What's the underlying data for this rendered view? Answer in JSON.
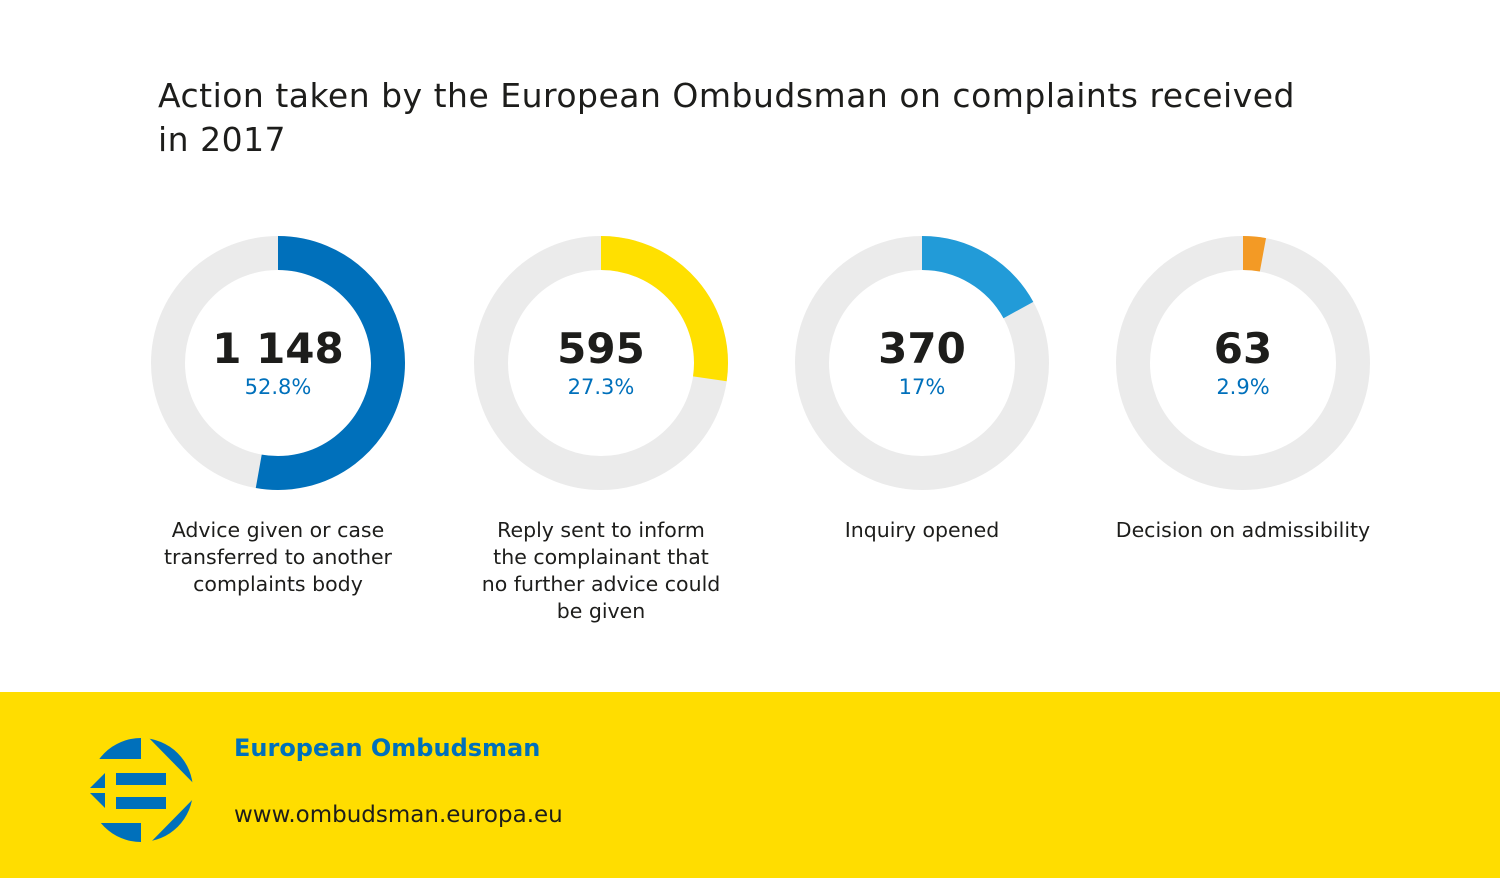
{
  "chart_data": {
    "type": "donut",
    "title": "Action taken by the European Ombudsman on complaints received in 2017",
    "items": [
      {
        "label": "Advice given or case transferred to another complaints body",
        "value": 1148,
        "value_text": "1 148",
        "percent": 52.8,
        "percent_text": "52.8%",
        "color": "#0070bb"
      },
      {
        "label": "Reply sent to inform the complainant that no further advice could be given",
        "value": 595,
        "value_text": "595",
        "percent": 27.3,
        "percent_text": "27.3%",
        "color": "#ffe000"
      },
      {
        "label": "Inquiry opened",
        "value": 370,
        "value_text": "370",
        "percent": 17,
        "percent_text": "17%",
        "color": "#229bd8"
      },
      {
        "label": "Decision on admissibility",
        "value": 63,
        "value_text": "63",
        "percent": 2.9,
        "percent_text": "2.9%",
        "color": "#f39a25"
      }
    ],
    "track_color": "#ebebeb",
    "percent_color": "#0070bb"
  },
  "footer": {
    "organization": "European Ombudsman",
    "url": "www.ombudsman.europa.eu",
    "background": "#ffdd00",
    "logo_color": "#0070bb"
  }
}
